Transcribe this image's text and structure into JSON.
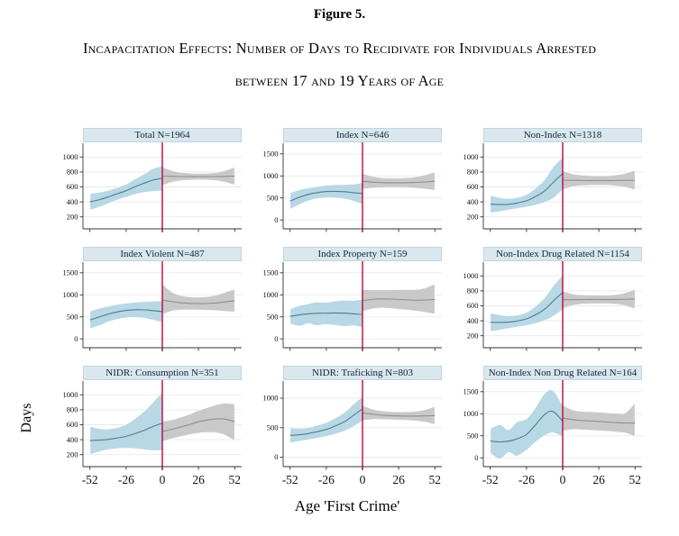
{
  "figure": {
    "label": "Figure 5.",
    "caption_line1": "Incapacitation Effects: Number of Days to Recidivate for Individuals Arrested",
    "caption_line2": "between 17 and 19 Years of Age",
    "ylabel": "Days",
    "xlabel": "Age 'First Crime'"
  },
  "chart_data": {
    "type": "line",
    "layout": "3x3-small-multiples",
    "description": "Regression discontinuity style panels: local polynomial fit of days to recidivate vs age relative to cutoff, blue band left of cutoff 0, gray band right, red vertical line at 0",
    "x_domain": [
      -57,
      57
    ],
    "xticks": [
      -52,
      -26,
      0,
      26,
      52
    ],
    "cutoff_x": 0,
    "x_pre": [
      -52,
      -45,
      -39,
      -33,
      -26,
      -20,
      -13,
      -7,
      0
    ],
    "x_post": [
      0,
      7,
      13,
      20,
      26,
      33,
      39,
      45,
      52
    ],
    "colors": {
      "pre_band": "#b7d8e4",
      "pre_line": "#4f7e91",
      "post_band": "#c9c9c9",
      "post_line": "#8f8f8f",
      "cutoff": "#c10534",
      "grid": "#e6e9ea",
      "axis": "#333333",
      "header_bg": "#dae7ee",
      "header_border": "#c2d4de"
    },
    "panels": [
      {
        "title": "Total N=1964",
        "yticks": [
          200,
          400,
          600,
          800,
          1000
        ],
        "yrange": [
          40,
          1160
        ],
        "pre": {
          "center": [
            400,
            430,
            465,
            505,
            550,
            600,
            650,
            690,
            715
          ],
          "lo": [
            290,
            330,
            375,
            420,
            462,
            498,
            525,
            538,
            545
          ],
          "hi": [
            510,
            530,
            555,
            590,
            638,
            702,
            775,
            842,
            885
          ]
        },
        "post": {
          "center": [
            745,
            741,
            739,
            738,
            738,
            738,
            739,
            741,
            745
          ],
          "lo": [
            620,
            662,
            682,
            692,
            694,
            692,
            682,
            662,
            625
          ],
          "hi": [
            870,
            820,
            796,
            784,
            782,
            784,
            796,
            820,
            865
          ]
        }
      },
      {
        "title": "Index N=646",
        "yticks": [
          0,
          500,
          1000,
          1500
        ],
        "yrange": [
          -200,
          1700
        ],
        "pre": {
          "center": [
            430,
            520,
            580,
            620,
            645,
            650,
            642,
            622,
            600
          ],
          "lo": [
            240,
            350,
            430,
            482,
            500,
            500,
            478,
            430,
            352
          ],
          "hi": [
            620,
            690,
            730,
            758,
            790,
            800,
            806,
            814,
            848
          ]
        },
        "post": {
          "center": [
            878,
            858,
            848,
            844,
            844,
            846,
            852,
            862,
            880
          ],
          "lo": [
            700,
            722,
            732,
            736,
            736,
            730,
            718,
            700,
            672
          ],
          "hi": [
            1056,
            994,
            964,
            952,
            952,
            962,
            986,
            1024,
            1088
          ]
        }
      },
      {
        "title": "Non-Index N=1318",
        "yticks": [
          200,
          400,
          600,
          800,
          1000
        ],
        "yrange": [
          40,
          1160
        ],
        "pre": {
          "center": [
            370,
            364,
            368,
            384,
            415,
            466,
            545,
            655,
            780
          ],
          "lo": [
            252,
            270,
            290,
            310,
            330,
            354,
            390,
            445,
            560
          ],
          "hi": [
            488,
            458,
            446,
            458,
            500,
            578,
            700,
            865,
            1000
          ]
        },
        "post": {
          "center": [
            690,
            688,
            687,
            686,
            686,
            686,
            687,
            688,
            690
          ],
          "lo": [
            562,
            600,
            614,
            620,
            622,
            620,
            610,
            594,
            556
          ],
          "hi": [
            818,
            776,
            760,
            752,
            750,
            752,
            764,
            782,
            824
          ]
        }
      },
      {
        "title": "Index Violent N=487",
        "yticks": [
          0,
          500,
          1000,
          1500
        ],
        "yrange": [
          -200,
          1700
        ],
        "pre": {
          "center": [
            430,
            500,
            560,
            610,
            645,
            660,
            658,
            642,
            620
          ],
          "lo": [
            230,
            300,
            380,
            440,
            478,
            488,
            468,
            428,
            370
          ],
          "hi": [
            630,
            700,
            740,
            780,
            812,
            832,
            848,
            856,
            870
          ]
        },
        "post": {
          "center": [
            880,
            845,
            820,
            806,
            800,
            806,
            816,
            840,
            866
          ],
          "lo": [
            550,
            630,
            655,
            660,
            655,
            648,
            638,
            624,
            605
          ],
          "hi": [
            1250,
            1060,
            990,
            955,
            948,
            962,
            1000,
            1060,
            1130
          ]
        }
      },
      {
        "title": "Index Property N=159",
        "yticks": [
          0,
          500,
          1000,
          1500
        ],
        "yrange": [
          -200,
          1700
        ],
        "pre": {
          "center": [
            510,
            548,
            568,
            580,
            585,
            588,
            584,
            570,
            552
          ],
          "lo": [
            340,
            292,
            348,
            302,
            328,
            308,
            282,
            300,
            262
          ],
          "hi": [
            680,
            758,
            798,
            838,
            832,
            858,
            878,
            872,
            898
          ]
        },
        "post": {
          "center": [
            868,
            898,
            908,
            904,
            896,
            886,
            876,
            880,
            890
          ],
          "lo": [
            618,
            678,
            698,
            690,
            670,
            650,
            630,
            600,
            562
          ],
          "hi": [
            1118,
            1118,
            1118,
            1116,
            1120,
            1122,
            1122,
            1160,
            1248
          ]
        }
      },
      {
        "title": "Non-Index Drug Related N=1154",
        "yticks": [
          200,
          400,
          600,
          800,
          1000
        ],
        "yrange": [
          40,
          1160
        ],
        "pre": {
          "center": [
            380,
            378,
            382,
            396,
            425,
            475,
            555,
            660,
            780
          ],
          "lo": [
            256,
            276,
            296,
            316,
            336,
            360,
            400,
            456,
            546
          ],
          "hi": [
            504,
            480,
            468,
            476,
            514,
            590,
            710,
            864,
            1014
          ]
        },
        "post": {
          "center": [
            680,
            682,
            684,
            686,
            686,
            686,
            686,
            688,
            690
          ],
          "lo": [
            560,
            604,
            620,
            626,
            628,
            626,
            618,
            600,
            556
          ],
          "hi": [
            800,
            760,
            748,
            746,
            744,
            746,
            754,
            776,
            824
          ]
        }
      },
      {
        "title": "NIDR: Consumption N=351",
        "yticks": [
          200,
          400,
          600,
          800,
          1000
        ],
        "yrange": [
          40,
          1160
        ],
        "pre": {
          "center": [
            390,
            394,
            404,
            420,
            445,
            480,
            525,
            575,
            620
          ],
          "lo": [
            202,
            240,
            265,
            280,
            285,
            280,
            266,
            254,
            258
          ],
          "hi": [
            578,
            548,
            543,
            560,
            605,
            680,
            784,
            896,
            1040
          ]
        },
        "post": {
          "center": [
            510,
            540,
            570,
            605,
            640,
            665,
            680,
            675,
            640
          ],
          "lo": [
            372,
            412,
            440,
            466,
            486,
            496,
            490,
            460,
            382
          ],
          "hi": [
            648,
            668,
            700,
            744,
            794,
            834,
            870,
            890,
            878
          ]
        }
      },
      {
        "title": "NIDR: Traficking N=803",
        "yticks": [
          0,
          500,
          1000
        ],
        "yrange": [
          -160,
          1260
        ],
        "pre": {
          "center": [
            370,
            380,
            400,
            430,
            470,
            525,
            600,
            700,
            820
          ],
          "lo": [
            240,
            270,
            295,
            320,
            350,
            390,
            440,
            510,
            612
          ],
          "hi": [
            500,
            490,
            505,
            540,
            590,
            660,
            760,
            890,
            1028
          ]
        },
        "post": {
          "center": [
            750,
            728,
            714,
            704,
            699,
            697,
            697,
            700,
            706
          ],
          "lo": [
            620,
            638,
            638,
            634,
            628,
            622,
            612,
            592,
            552
          ],
          "hi": [
            880,
            818,
            790,
            774,
            770,
            772,
            782,
            808,
            860
          ]
        }
      },
      {
        "title": "Non-Index Non Drug Related N=164",
        "yticks": [
          0,
          500,
          1000,
          1500
        ],
        "yrange": [
          -200,
          1700
        ],
        "pre": {
          "center": [
            380,
            362,
            378,
            428,
            530,
            730,
            980,
            1050,
            830
          ],
          "lo": [
            100,
            -30,
            120,
            40,
            170,
            340,
            500,
            570,
            470
          ],
          "hi": [
            660,
            754,
            636,
            816,
            890,
            1120,
            1460,
            1530,
            1190
          ]
        },
        "post": {
          "center": [
            900,
            866,
            846,
            836,
            826,
            810,
            796,
            790,
            786
          ],
          "lo": [
            600,
            640,
            634,
            624,
            614,
            600,
            580,
            560,
            480
          ],
          "hi": [
            1200,
            1092,
            1058,
            1048,
            1038,
            1020,
            1012,
            1020,
            1250
          ]
        }
      }
    ]
  }
}
